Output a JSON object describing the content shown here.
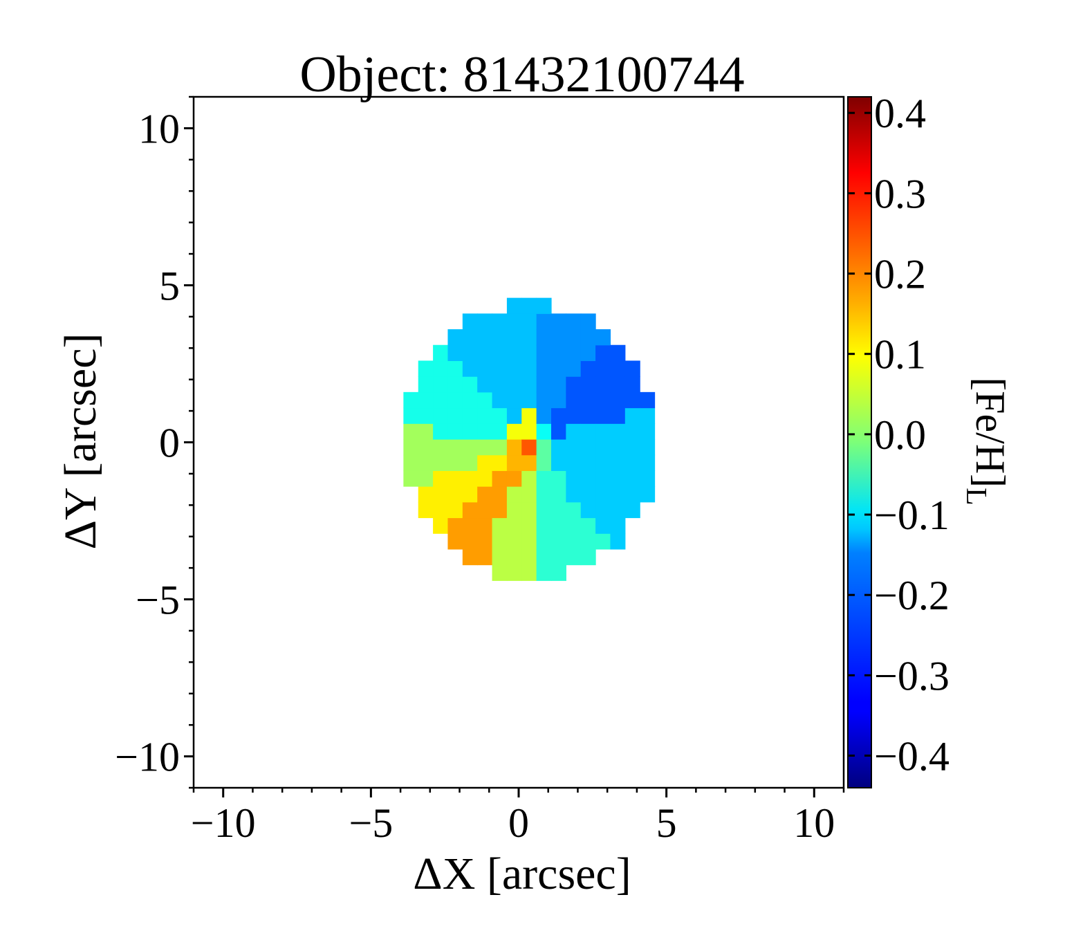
{
  "chart_data": {
    "type": "heatmap",
    "title": "Object: 81432100744",
    "xlabel": "ΔX [arcsec]",
    "ylabel": "ΔY [arcsec]",
    "colorbar_label": "[Fe/H]",
    "colorbar_label_subscript": "L",
    "xlim": [
      -11,
      11
    ],
    "ylim": [
      -11,
      11
    ],
    "clim": [
      -0.44,
      0.42
    ],
    "x_ticks": [
      -10,
      -5,
      0,
      5,
      10
    ],
    "x_tick_labels": [
      "−10",
      "−5",
      "0",
      "5",
      "10"
    ],
    "y_ticks": [
      -10,
      -5,
      0,
      5,
      10
    ],
    "y_tick_labels": [
      "−10",
      "−5",
      "0",
      "5",
      "10"
    ],
    "colorbar_ticks": [
      -0.4,
      -0.3,
      -0.2,
      -0.1,
      0.0,
      0.1,
      0.2,
      0.3,
      0.4
    ],
    "colorbar_tick_labels": [
      "−0.4",
      "−0.3",
      "−0.2",
      "−0.1",
      "0.0",
      "0.1",
      "0.2",
      "0.3",
      "0.4"
    ],
    "colormap": "jet",
    "grid": false,
    "map": {
      "center": [
        0.4,
        0.0
      ],
      "radius_x": 4.3,
      "radius_y": 4.4,
      "pixel_size": 0.5,
      "bins": [
        {
          "theta_from": 14,
          "theta_to": 52,
          "r_from": 0.9,
          "r_to": 99,
          "value": -0.26
        },
        {
          "theta_from": 52,
          "theta_to": 84,
          "r_from": 0.9,
          "r_to": 99,
          "value": -0.21
        },
        {
          "theta_from": 84,
          "theta_to": 132,
          "r_from": 0.9,
          "r_to": 99,
          "value": -0.17
        },
        {
          "theta_from": 132,
          "theta_to": 174,
          "r_from": 0.9,
          "r_to": 99,
          "value": -0.1
        },
        {
          "theta_from": 174,
          "theta_to": 198,
          "r_from": 0.9,
          "r_to": 99,
          "value": 0.02
        },
        {
          "theta_from": 198,
          "theta_to": 226,
          "r_from": 0.9,
          "r_to": 99,
          "value": 0.11
        },
        {
          "theta_from": 226,
          "theta_to": 248,
          "r_from": 0.9,
          "r_to": 99,
          "value": 0.18
        },
        {
          "theta_from": 248,
          "theta_to": 274,
          "r_from": 0.9,
          "r_to": 99,
          "value": 0.04
        },
        {
          "theta_from": 274,
          "theta_to": 310,
          "r_from": 0.9,
          "r_to": 99,
          "value": -0.08
        },
        {
          "theta_from": 310,
          "theta_to": 374,
          "r_from": 0.9,
          "r_to": 99,
          "value": -0.16
        },
        {
          "theta_from": 0,
          "theta_to": 90,
          "r_from": 0.35,
          "r_to": 0.9,
          "value": -0.11
        },
        {
          "theta_from": 90,
          "theta_to": 180,
          "r_from": 0.35,
          "r_to": 0.9,
          "value": 0.09
        },
        {
          "theta_from": 180,
          "theta_to": 270,
          "r_from": 0.35,
          "r_to": 0.9,
          "value": 0.16
        },
        {
          "theta_from": 270,
          "theta_to": 360,
          "r_from": 0.35,
          "r_to": 0.9,
          "value": -0.04
        },
        {
          "theta_from": 0,
          "theta_to": 360,
          "r_from": 0,
          "r_to": 0.35,
          "value": 0.24
        }
      ]
    }
  }
}
